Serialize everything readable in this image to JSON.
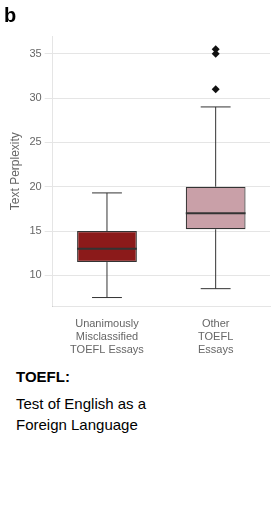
{
  "chart_data": {
    "type": "box",
    "title": "b",
    "categories": [
      "Unanimously\nMisclassified\nTOEFL Essays",
      "Other\nTOEFL\nEssays"
    ],
    "boxes": [
      {
        "whislo": 7.5,
        "q1": 11.5,
        "med": 13.0,
        "q3": 15.0,
        "whishi": 19.3,
        "fliers": [],
        "color": "#8B1A1A"
      },
      {
        "whislo": 8.5,
        "q1": 15.2,
        "med": 17.0,
        "q3": 20.0,
        "whishi": 29.0,
        "fliers": [
          31.0,
          35.0,
          35.5
        ],
        "color": "#C9A0A8"
      }
    ],
    "marker": "diamond",
    "ylabel": "Text Perplexity",
    "ylim": [
      6.5,
      37
    ],
    "yticks": [
      10,
      15,
      20,
      25,
      30,
      35
    ],
    "grid": true,
    "annotations": [
      "TOEFL:",
      "Test of English as a\nForeign Language"
    ]
  }
}
